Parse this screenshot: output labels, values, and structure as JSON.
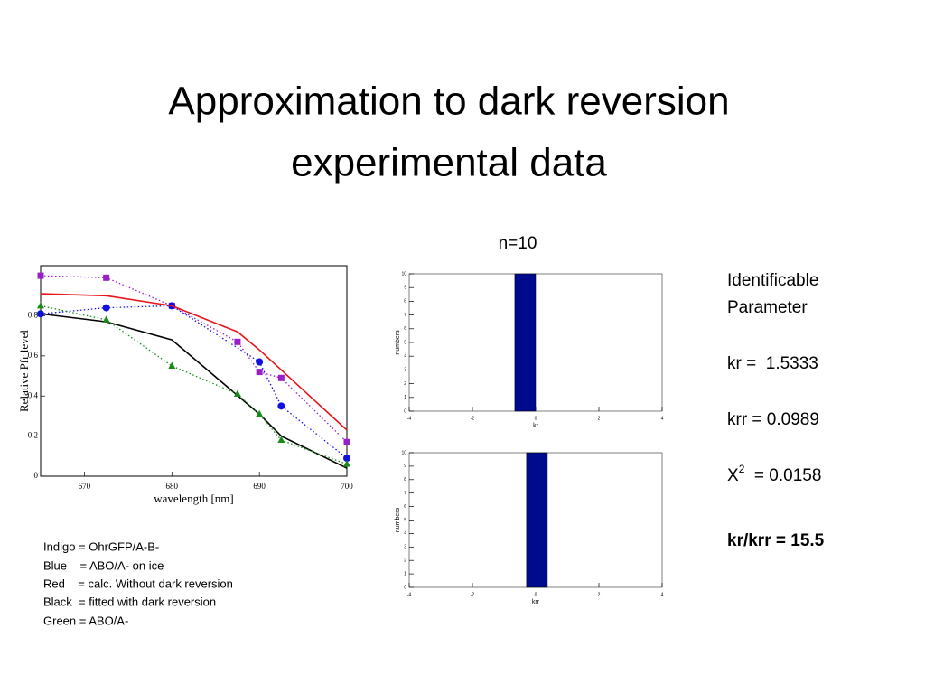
{
  "title": [
    "Approximation to dark reversion",
    "experimental data"
  ],
  "n_label": "n=10",
  "legend_notes": [
    "Indigo = OhrGFP/A-B-",
    "Blue    = ABO/A- on ice",
    "Red    = calc. Without dark reversion",
    "Black  = fitted with dark reversion",
    "Green = ABO/A-"
  ],
  "parameters": {
    "heading": [
      "Identificable",
      "Parameter"
    ],
    "kr": "kr =  1.5333",
    "krr": "krr = 0.0989",
    "chi": {
      "symbol": "X",
      "sup": "2",
      "text": "  = 0.0158"
    },
    "ratio": "kr/krr = 15.5"
  },
  "chart_data": [
    {
      "type": "line",
      "xlabel": "wavelength [nm]",
      "ylabel": "Relative Pfr level",
      "xlim": [
        665,
        700
      ],
      "ylim": [
        0,
        1.05
      ],
      "xticks": [
        670,
        680,
        690,
        700
      ],
      "yticks": [
        0,
        0.2,
        0.4,
        0.6,
        0.8
      ],
      "series": [
        {
          "color": "#9b1fc9",
          "style": "dotted",
          "marker": "square",
          "x": [
            665,
            672.5,
            680,
            687.5,
            690,
            692.5,
            700
          ],
          "values": [
            1.0,
            0.99,
            0.85,
            0.67,
            0.52,
            0.49,
            0.17
          ]
        },
        {
          "color": "#1010e0",
          "style": "dotted",
          "marker": "circle",
          "x": [
            665,
            672.5,
            680,
            690,
            692.5,
            700
          ],
          "values": [
            0.81,
            0.84,
            0.85,
            0.57,
            0.35,
            0.09
          ]
        },
        {
          "color": "#e8141a",
          "style": "solid",
          "marker": "none",
          "x": [
            665,
            672.5,
            680,
            687.5,
            690,
            700
          ],
          "values": [
            0.91,
            0.9,
            0.85,
            0.72,
            0.63,
            0.23
          ]
        },
        {
          "color": "#000000",
          "style": "solid",
          "marker": "none",
          "x": [
            665,
            672.5,
            680,
            690,
            692.5,
            700
          ],
          "values": [
            0.81,
            0.77,
            0.68,
            0.31,
            0.2,
            0.04
          ]
        },
        {
          "color": "#1a8a1a",
          "style": "dotted",
          "marker": "triangle",
          "x": [
            665,
            672.5,
            680,
            687.5,
            690,
            692.5,
            700
          ],
          "values": [
            0.85,
            0.78,
            0.55,
            0.41,
            0.31,
            0.18,
            0.06
          ]
        }
      ]
    },
    {
      "type": "histogram",
      "xlabel": "kr",
      "ylabel": "numbers",
      "xlim": [
        -4,
        4
      ],
      "ylim": [
        0,
        10
      ],
      "xticks": [
        -4,
        -2,
        0,
        2,
        4
      ],
      "yticks": [
        0,
        1,
        2,
        3,
        4,
        5,
        6,
        7,
        8,
        9,
        10
      ],
      "color": "#000a8c",
      "bins": [
        -0.66,
        0
      ],
      "values": [
        10
      ]
    },
    {
      "type": "histogram",
      "xlabel": "krr",
      "ylabel": "numbers",
      "xlim": [
        -4,
        4
      ],
      "ylim": [
        0,
        10
      ],
      "xticks": [
        -4,
        -2,
        0,
        2,
        4
      ],
      "yticks": [
        0,
        1,
        2,
        3,
        4,
        5,
        6,
        7,
        8,
        9,
        10
      ],
      "color": "#000a8c",
      "bins": [
        -0.29,
        0.37
      ],
      "values": [
        10
      ]
    }
  ]
}
